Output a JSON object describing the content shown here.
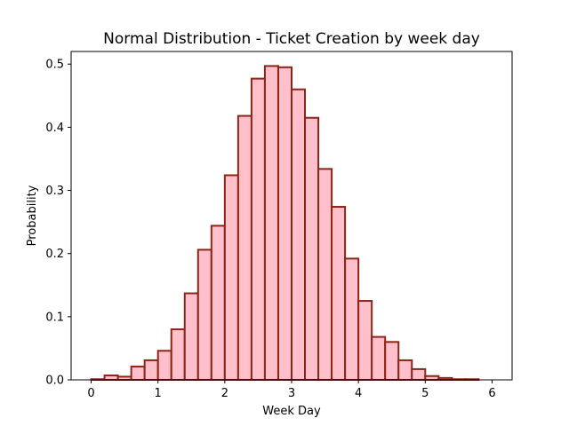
{
  "chart_data": {
    "type": "bar",
    "title": "Normal Distribution - Ticket Creation by week day",
    "xlabel": "Week Day",
    "ylabel": "Probability",
    "xlim": [
      -0.3,
      6.3
    ],
    "ylim": [
      0,
      0.52
    ],
    "xticks": [
      0,
      1,
      2,
      3,
      4,
      5,
      6
    ],
    "yticks": [
      0.0,
      0.1,
      0.2,
      0.3,
      0.4,
      0.5
    ],
    "ytick_labels": [
      "0.0",
      "0.1",
      "0.2",
      "0.3",
      "0.4",
      "0.5"
    ],
    "grid": false,
    "legend": "none",
    "bin_width": 0.2,
    "bins": [
      {
        "x0": 0.0,
        "value": 0.001
      },
      {
        "x0": 0.2,
        "value": 0.007
      },
      {
        "x0": 0.4,
        "value": 0.005
      },
      {
        "x0": 0.6,
        "value": 0.021
      },
      {
        "x0": 0.8,
        "value": 0.031
      },
      {
        "x0": 1.0,
        "value": 0.046
      },
      {
        "x0": 1.2,
        "value": 0.08
      },
      {
        "x0": 1.4,
        "value": 0.137
      },
      {
        "x0": 1.6,
        "value": 0.206
      },
      {
        "x0": 1.8,
        "value": 0.244
      },
      {
        "x0": 2.0,
        "value": 0.324
      },
      {
        "x0": 2.2,
        "value": 0.418
      },
      {
        "x0": 2.4,
        "value": 0.477
      },
      {
        "x0": 2.6,
        "value": 0.497
      },
      {
        "x0": 2.8,
        "value": 0.495
      },
      {
        "x0": 3.0,
        "value": 0.46
      },
      {
        "x0": 3.2,
        "value": 0.415
      },
      {
        "x0": 3.4,
        "value": 0.334
      },
      {
        "x0": 3.6,
        "value": 0.274
      },
      {
        "x0": 3.8,
        "value": 0.192
      },
      {
        "x0": 4.0,
        "value": 0.125
      },
      {
        "x0": 4.2,
        "value": 0.068
      },
      {
        "x0": 4.4,
        "value": 0.06
      },
      {
        "x0": 4.6,
        "value": 0.031
      },
      {
        "x0": 4.8,
        "value": 0.017
      },
      {
        "x0": 5.0,
        "value": 0.006
      },
      {
        "x0": 5.2,
        "value": 0.003
      },
      {
        "x0": 5.4,
        "value": 0.001
      },
      {
        "x0": 5.6,
        "value": 0.001
      },
      {
        "x0": 5.8,
        "value": 0.0
      }
    ],
    "colors": {
      "bar_fill": "#ffc0cb",
      "bar_edge": "#8b2518"
    }
  }
}
